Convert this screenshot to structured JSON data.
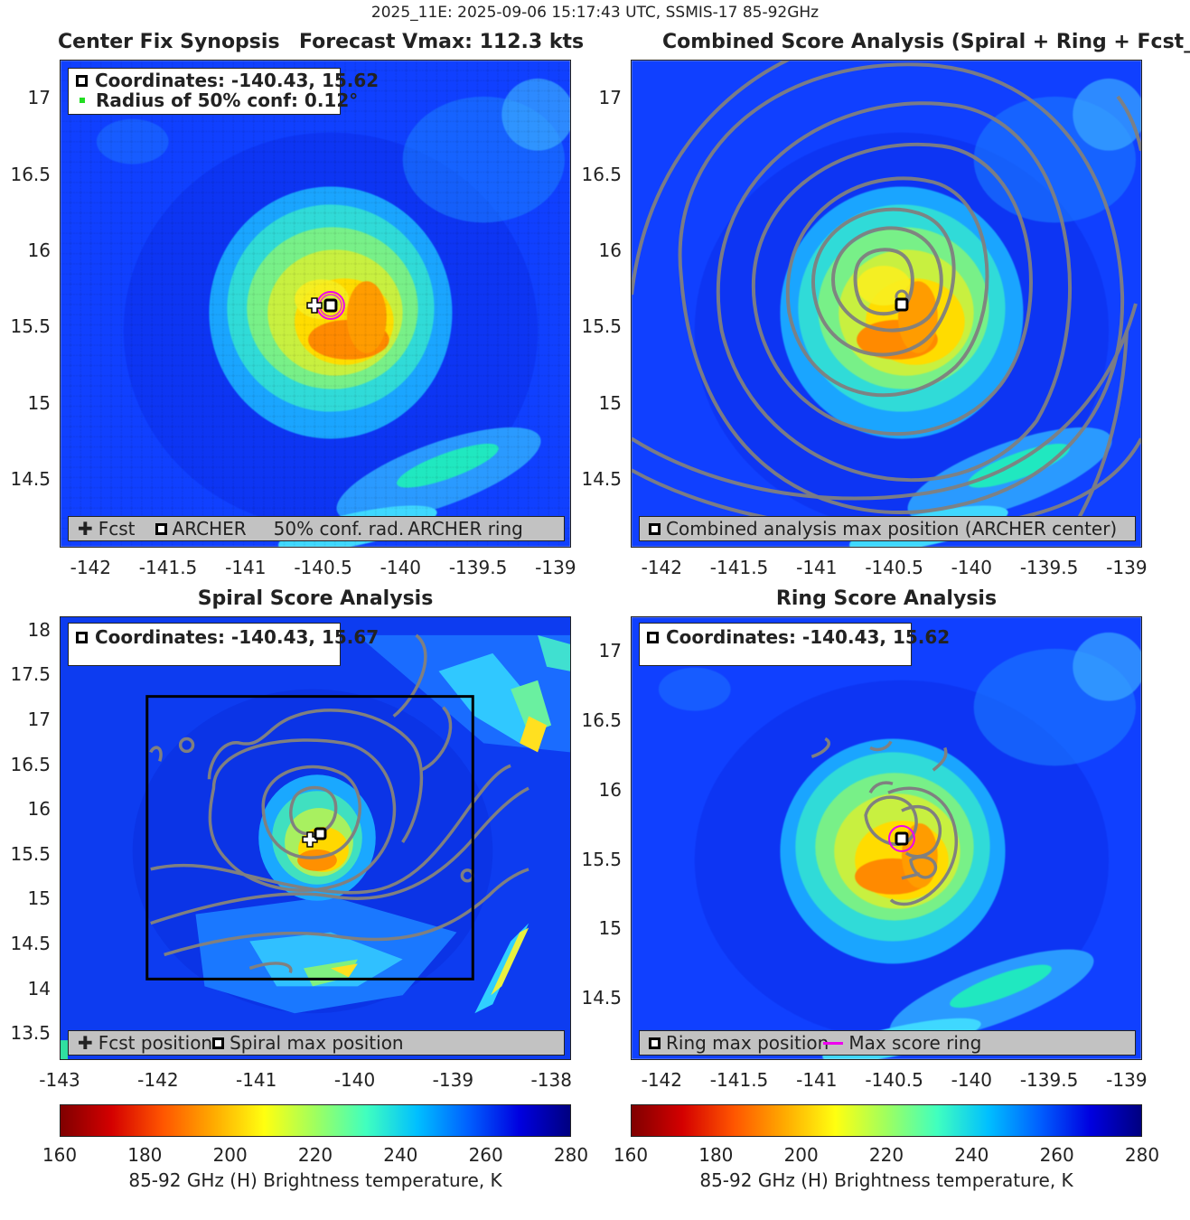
{
  "suptitle": "2025_11E: 2025-09-06 15:17:43 UTC, SSMIS-17 85-92GHz",
  "colors": {
    "fcst_marker": "#ffffff",
    "archer_marker": "#000000",
    "ring": "#ee00ee",
    "contour": "#808080",
    "conf_dot": "#22dd22",
    "legend_bg": "#c2c2c2"
  },
  "panels": {
    "synopsis": {
      "title_left": "Center Fix Synopsis",
      "title_right": "Forecast Vmax: 112.3 kts",
      "info_coords": "Coordinates: -140.43, 15.62",
      "info_radius": "Radius of 50% conf: 0.12°",
      "legend": {
        "fcst": "Fcst",
        "archer": "ARCHER",
        "conf": "50% conf. rad.",
        "ring": "ARCHER ring"
      }
    },
    "combined": {
      "title": "Combined Score Analysis (Spiral + Ring + Fcst_Pe",
      "legend": {
        "max": "Combined analysis max position (ARCHER center)"
      }
    },
    "spiral": {
      "title": "Spiral Score Analysis",
      "info_coords": "Coordinates: -140.43, 15.67",
      "legend": {
        "fcst": "Fcst position",
        "max": "Spiral max position"
      }
    },
    "ring": {
      "title": "Ring Score Analysis",
      "info_coords": "Coordinates: -140.43, 15.62",
      "legend": {
        "max": "Ring max position",
        "ring": "Max score ring"
      }
    }
  },
  "colorbar": {
    "label": "85-92 GHz (H) Brightness temperature, K",
    "ticks": [
      "160",
      "180",
      "200",
      "220",
      "240",
      "260",
      "280"
    ]
  },
  "chart_data": [
    {
      "type": "heatmap",
      "title": "Center Fix Synopsis",
      "subtitle": "Forecast Vmax: 112.3 kts",
      "x_ticks": [
        "-142",
        "-141.5",
        "-141",
        "-140.5",
        "-140",
        "-139.5",
        "-139"
      ],
      "y_ticks": [
        "17",
        "16.5",
        "16",
        "15.5",
        "15",
        "14.5"
      ],
      "xlim": [
        -142.2,
        -138.9
      ],
      "ylim": [
        14.05,
        17.25
      ],
      "fcst_position": [
        -140.54,
        15.62
      ],
      "archer_center": [
        -140.43,
        15.62
      ],
      "conf_radius_deg": 0.12,
      "clim": [
        160,
        280
      ]
    },
    {
      "type": "heatmap",
      "title": "Combined Score Analysis (Spiral + Ring + Fcst_Pe",
      "x_ticks": [
        "-142",
        "-141.5",
        "-141",
        "-140.5",
        "-140",
        "-139.5",
        "-139"
      ],
      "y_ticks": [
        "17",
        "16.5",
        "16",
        "15.5",
        "15",
        "14.5"
      ],
      "xlim": [
        -142.2,
        -138.9
      ],
      "ylim": [
        14.05,
        17.25
      ],
      "max_position": [
        -140.43,
        15.62
      ],
      "clim": [
        160,
        280
      ]
    },
    {
      "type": "heatmap",
      "title": "Spiral Score Analysis",
      "x_ticks": [
        "-143",
        "-142",
        "-141",
        "-140",
        "-139",
        "-138"
      ],
      "y_ticks": [
        "18",
        "17.5",
        "17",
        "16.5",
        "16",
        "15.5",
        "15",
        "14.5",
        "14",
        "13.5"
      ],
      "xlim": [
        -143,
        -137.8
      ],
      "ylim": [
        13.2,
        18.15
      ],
      "fcst_position": [
        -140.54,
        15.62
      ],
      "max_position": [
        -140.43,
        15.67
      ],
      "search_box": {
        "x": [
          -142.1,
          -138.75
        ],
        "y": [
          14.05,
          17.25
        ]
      },
      "clim": [
        160,
        280
      ]
    },
    {
      "type": "heatmap",
      "title": "Ring Score Analysis",
      "x_ticks": [
        "-142",
        "-141.5",
        "-141",
        "-140.5",
        "-140",
        "-139.5",
        "-139"
      ],
      "y_ticks": [
        "17",
        "16.5",
        "16",
        "15",
        "14.5"
      ],
      "y_ticks_all": [
        "17",
        "16.5",
        "16",
        "15.5",
        "15",
        "14.5"
      ],
      "xlim": [
        -142.2,
        -138.9
      ],
      "ylim": [
        14.05,
        17.25
      ],
      "max_position": [
        -140.43,
        15.62
      ],
      "clim": [
        160,
        280
      ]
    }
  ]
}
